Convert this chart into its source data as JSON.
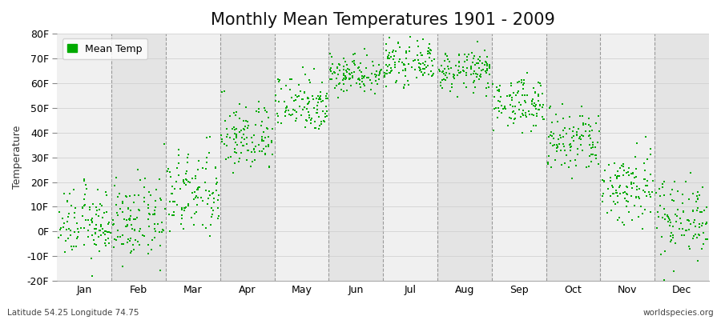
{
  "title": "Monthly Mean Temperatures 1901 - 2009",
  "ylabel": "Temperature",
  "xlabel_labels": [
    "Jan",
    "Feb",
    "Mar",
    "Apr",
    "May",
    "Jun",
    "Jul",
    "Aug",
    "Sep",
    "Oct",
    "Nov",
    "Dec"
  ],
  "subtitle_left": "Latitude 54.25 Longitude 74.75",
  "subtitle_right": "worldspecies.org",
  "legend_label": "Mean Temp",
  "ylim": [
    -20,
    80
  ],
  "yticks": [
    -20,
    -10,
    0,
    10,
    20,
    30,
    40,
    50,
    60,
    70,
    80
  ],
  "ytick_labels": [
    "-20F",
    "-10F",
    "0F",
    "10F",
    "20F",
    "30F",
    "40F",
    "50F",
    "60F",
    "70F",
    "80F"
  ],
  "dot_color": "#00aa00",
  "dot_size": 3,
  "background_color": "#ffffff",
  "plot_bg_color_light": "#f0f0f0",
  "plot_bg_color_dark": "#e4e4e4",
  "grid_color": "#999999",
  "title_fontsize": 15,
  "axis_fontsize": 9,
  "tick_fontsize": 9,
  "monthly_means_F": [
    3,
    4,
    15,
    38,
    52,
    64,
    68,
    65,
    52,
    36,
    18,
    6
  ],
  "monthly_stds_F": [
    7,
    8,
    9,
    7,
    6,
    4,
    4,
    4,
    5,
    7,
    8,
    8
  ],
  "n_years": 109
}
